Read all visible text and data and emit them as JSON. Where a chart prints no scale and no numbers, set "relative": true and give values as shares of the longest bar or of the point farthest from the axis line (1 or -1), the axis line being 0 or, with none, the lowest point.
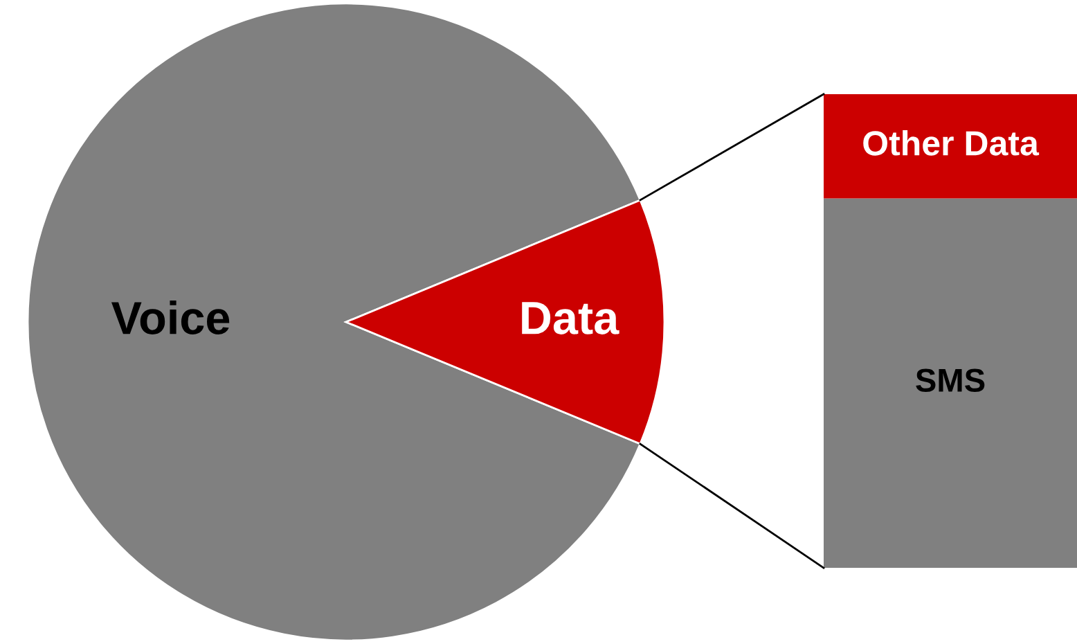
{
  "chart_data": [
    {
      "type": "pie",
      "categories": [
        "Voice",
        "Data"
      ],
      "values": [
        87.5,
        12.5
      ],
      "colors": [
        "#808080",
        "#cc0000"
      ]
    },
    {
      "type": "bar",
      "relative": true,
      "stacked": true,
      "categories": [
        null
      ],
      "series": [
        {
          "name": "SMS",
          "color": "#808080",
          "values": [
            0.78
          ]
        },
        {
          "name": "Other Data",
          "color": "#cc0000",
          "values": [
            0.22
          ]
        }
      ]
    }
  ]
}
